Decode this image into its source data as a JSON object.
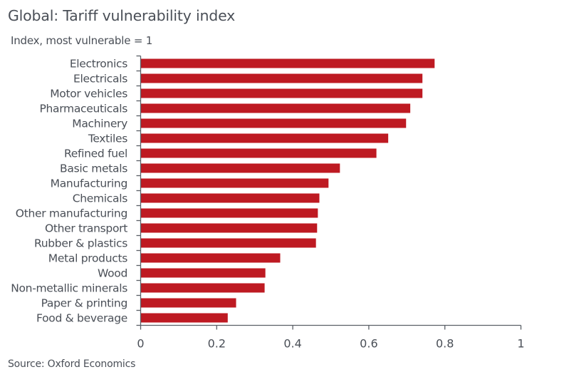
{
  "chart_data": {
    "type": "bar",
    "orientation": "horizontal",
    "title": "Global: Tariff vulnerability index",
    "subtitle": "Index, most vulnerable = 1",
    "source": "Source: Oxford Economics",
    "xlabel": "",
    "ylabel": "",
    "xlim": [
      0,
      1
    ],
    "xticks": [
      0,
      0.2,
      0.4,
      0.6,
      0.8,
      1
    ],
    "xtick_labels": [
      "0",
      "0.2",
      "0.4",
      "0.6",
      "0.8",
      "1"
    ],
    "grid": false,
    "legend": "none",
    "bar_color": "#BE1A22",
    "categories": [
      "Electronics",
      "Electricals",
      "Motor vehicles",
      "Pharmaceuticals",
      "Machinery",
      "Textiles",
      "Refined fuel",
      "Basic metals",
      "Manufacturing",
      "Chemicals",
      "Other manufacturing",
      "Other transport",
      "Rubber & plastics",
      "Metal products",
      "Wood",
      "Non-metallic minerals",
      "Paper & printing",
      "Food & beverage"
    ],
    "values": [
      0.773,
      0.741,
      0.741,
      0.709,
      0.698,
      0.651,
      0.62,
      0.524,
      0.494,
      0.47,
      0.466,
      0.464,
      0.461,
      0.367,
      0.328,
      0.326,
      0.251,
      0.229
    ]
  }
}
